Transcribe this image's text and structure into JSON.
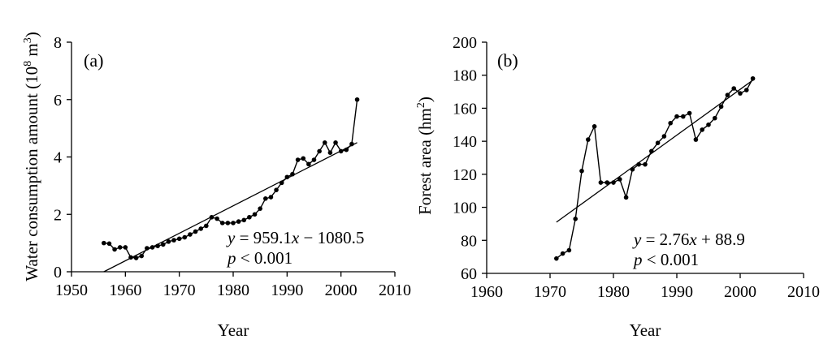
{
  "chart_data": [
    {
      "type": "line",
      "panel_label": "(a)",
      "xlabel": "Year",
      "ylabel": "Water consumption amount (10",
      "ylabel_sup1": "8",
      "ylabel_mid": " m",
      "ylabel_sup2": "3",
      "ylabel_end": ")",
      "xlim": [
        1950,
        2010
      ],
      "ylim": [
        0,
        8
      ],
      "xticks": [
        "1950",
        "1960",
        "1970",
        "1980",
        "1990",
        "2000",
        "2010"
      ],
      "yticks": [
        "0",
        "2",
        "4",
        "6",
        "8"
      ],
      "series": [
        {
          "name": "Water consumption",
          "x": [
            1956,
            1957,
            1958,
            1959,
            1960,
            1961,
            1962,
            1963,
            1964,
            1965,
            1966,
            1967,
            1968,
            1969,
            1970,
            1971,
            1972,
            1973,
            1974,
            1975,
            1976,
            1977,
            1978,
            1979,
            1980,
            1981,
            1982,
            1983,
            1984,
            1985,
            1986,
            1987,
            1988,
            1989,
            1990,
            1991,
            1992,
            1993,
            1994,
            1995,
            1996,
            1997,
            1998,
            1999,
            2000,
            2001,
            2002,
            2003
          ],
          "y": [
            1.0,
            0.98,
            0.78,
            0.85,
            0.85,
            0.5,
            0.48,
            0.55,
            0.82,
            0.85,
            0.9,
            0.95,
            1.05,
            1.1,
            1.15,
            1.2,
            1.3,
            1.4,
            1.5,
            1.6,
            1.9,
            1.85,
            1.7,
            1.7,
            1.7,
            1.75,
            1.8,
            1.9,
            2.0,
            2.2,
            2.55,
            2.6,
            2.85,
            3.1,
            3.3,
            3.4,
            3.9,
            3.95,
            3.75,
            3.9,
            4.2,
            4.5,
            4.15,
            4.5,
            4.2,
            4.25,
            4.45,
            6.0
          ]
        }
      ],
      "trend": {
        "slope_per_year": 0.0959,
        "x_start": 1956,
        "y_start": 0.0,
        "x_end": 2003,
        "y_end": 4.5
      },
      "equation_var_y": "y",
      "equation_eq": " = 959.1",
      "equation_var_x": "x",
      "equation_rest": " − 1080.5",
      "pvalue_var": "p",
      "pvalue_rest": " < 0.001"
    },
    {
      "type": "line",
      "panel_label": "(b)",
      "xlabel": "Year",
      "ylabel": "Forest area (hm",
      "ylabel_sup": "2",
      "ylabel_end": ")",
      "xlim": [
        1960,
        2010
      ],
      "ylim": [
        60,
        200
      ],
      "xticks": [
        "1960",
        "1970",
        "1980",
        "1990",
        "2000",
        "2010"
      ],
      "yticks": [
        "60",
        "80",
        "100",
        "120",
        "140",
        "160",
        "180",
        "200"
      ],
      "series": [
        {
          "name": "Forest area",
          "x": [
            1971,
            1972,
            1973,
            1974,
            1975,
            1976,
            1977,
            1978,
            1979,
            1980,
            1981,
            1982,
            1983,
            1984,
            1985,
            1986,
            1987,
            1988,
            1989,
            1990,
            1991,
            1992,
            1993,
            1994,
            1995,
            1996,
            1997,
            1998,
            1999,
            2000,
            2001,
            2002
          ],
          "y": [
            69,
            72,
            74,
            93,
            122,
            141,
            149,
            115,
            115,
            115,
            117,
            106,
            123,
            126,
            126,
            134,
            139,
            143,
            151,
            155,
            155,
            157,
            141,
            147,
            150,
            154,
            161,
            168,
            172,
            169,
            171,
            178
          ]
        }
      ],
      "trend": {
        "slope_per_year": 2.76,
        "x_start": 1971,
        "y_start": 91,
        "x_end": 2002,
        "y_end": 177
      },
      "equation_var_y": "y",
      "equation_eq": " = 2.76",
      "equation_var_x": "x",
      "equation_rest": " + 88.9",
      "pvalue_var": "p",
      "pvalue_rest": " < 0.001"
    }
  ]
}
